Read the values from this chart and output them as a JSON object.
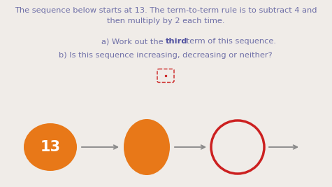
{
  "background_color": "#f0ece8",
  "title_line1": "The sequence below starts at 13. The term-to-term rule is to subtract 4 and",
  "title_line2": "then multiply by 2 each time.",
  "question_a_pre": "a) Work out the ",
  "question_a_bold": "third",
  "question_a_post": " term of this sequence.",
  "question_b": "b) Is this sequence increasing, decreasing or neither?",
  "text_color": "#7070a8",
  "bold_color": "#5050a0",
  "circle1_color": "#e87818",
  "circle2_color": "#e87818",
  "circle3_edge": "#cc2020",
  "circle1_label": "13",
  "label_color": "#ffffff",
  "arrow_color": "#888888",
  "small_box_color": "#cc2020",
  "fig_width": 4.75,
  "fig_height": 2.67,
  "dpi": 100
}
